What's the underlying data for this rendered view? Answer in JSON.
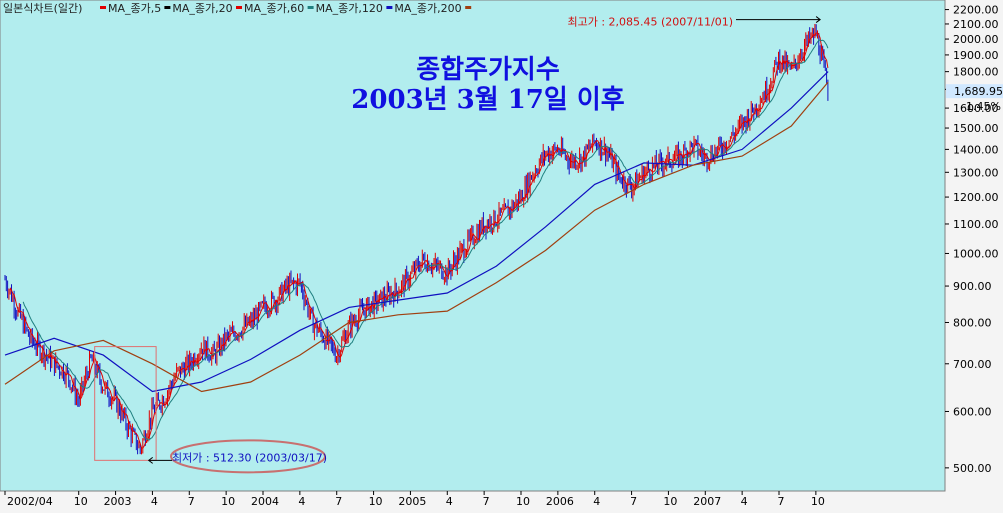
{
  "legend": {
    "chart_name": "일본식차트(일간)",
    "ma_items": [
      {
        "label": "MA_종가,5",
        "color": "#e00000"
      },
      {
        "label": "MA_종가,20",
        "color": "#000000"
      },
      {
        "label": "MA_종가,60",
        "color": "#e00000"
      },
      {
        "label": "MA_종가,120",
        "color": "#208080"
      },
      {
        "label": "MA_종가,200",
        "color": "#1010c0"
      },
      {
        "label": "",
        "color": "#a04010"
      }
    ]
  },
  "colors": {
    "plot_bg": "#b2edee",
    "up_candle": "#e00000",
    "down_candle": "#1010c0",
    "ma5": "#e00000",
    "ma20": "#208080",
    "ma60": "#1010c0",
    "ma120": "#0000a0",
    "ma200": "#a04010",
    "current_label_bg": "#d0e8ff"
  },
  "chart_data": {
    "type": "line",
    "title": "종합주가지수",
    "subtitle": "2003년 3월 17일 이후",
    "y_scale": "log",
    "ylim": [
      470,
      2240
    ],
    "y_ticks": [
      500,
      600,
      700,
      800,
      900,
      1000,
      1100,
      1200,
      1300,
      1400,
      1500,
      1600,
      1700,
      1800,
      1900,
      2000,
      2100,
      2200
    ],
    "y_tick_labels": [
      "500.00",
      "600.00",
      "700.00",
      "800.00",
      "900.00",
      "1000.00",
      "1100.00",
      "1200.00",
      "1300.00",
      "1400.00",
      "1500.00",
      "1600.00",
      "1700.00",
      "1800.00",
      "1900.00",
      "2000.00",
      "2100.00",
      "2200.00"
    ],
    "x_ticks": [
      {
        "label": "2002/04",
        "date": "2002-04"
      },
      {
        "label": "10",
        "date": "2002-10"
      },
      {
        "label": "2003",
        "date": "2003-01"
      },
      {
        "label": "4",
        "date": "2003-04"
      },
      {
        "label": "7",
        "date": "2003-07"
      },
      {
        "label": "10",
        "date": "2003-10"
      },
      {
        "label": "2004",
        "date": "2004-01"
      },
      {
        "label": "4",
        "date": "2004-04"
      },
      {
        "label": "7",
        "date": "2004-07"
      },
      {
        "label": "10",
        "date": "2004-10"
      },
      {
        "label": "2005",
        "date": "2005-01"
      },
      {
        "label": "4",
        "date": "2005-04"
      },
      {
        "label": "7",
        "date": "2005-07"
      },
      {
        "label": "10",
        "date": "2005-10"
      },
      {
        "label": "2006",
        "date": "2006-01"
      },
      {
        "label": "4",
        "date": "2006-04"
      },
      {
        "label": "7",
        "date": "2006-07"
      },
      {
        "label": "10",
        "date": "2006-10"
      },
      {
        "label": "2007",
        "date": "2007-01"
      },
      {
        "label": "4",
        "date": "2007-04"
      },
      {
        "label": "7",
        "date": "2007-07"
      },
      {
        "label": "10",
        "date": "2007-10"
      }
    ],
    "series": [
      {
        "name": "",
        "role": "close",
        "x": [
          "2002-04",
          "2002-05",
          "2002-06",
          "2002-07",
          "2002-08",
          "2002-09",
          "2002-10",
          "2002-11",
          "2002-12",
          "2003-01",
          "2003-02",
          "2003-03",
          "2003-04",
          "2003-05",
          "2003-06",
          "2003-07",
          "2003-08",
          "2003-09",
          "2003-10",
          "2003-11",
          "2003-12",
          "2004-01",
          "2004-02",
          "2004-03",
          "2004-04",
          "2004-05",
          "2004-06",
          "2004-07",
          "2004-08",
          "2004-09",
          "2004-10",
          "2004-11",
          "2004-12",
          "2005-01",
          "2005-02",
          "2005-03",
          "2005-04",
          "2005-05",
          "2005-06",
          "2005-07",
          "2005-08",
          "2005-09",
          "2005-10",
          "2005-11",
          "2005-12",
          "2006-01",
          "2006-02",
          "2006-03",
          "2006-04",
          "2006-05",
          "2006-06",
          "2006-07",
          "2006-08",
          "2006-09",
          "2006-10",
          "2006-11",
          "2006-12",
          "2007-01",
          "2007-02",
          "2007-03",
          "2007-04",
          "2007-05",
          "2007-06",
          "2007-07",
          "2007-08",
          "2007-09",
          "2007-10",
          "2007-11"
        ],
        "values": [
          920,
          830,
          760,
          730,
          700,
          680,
          620,
          710,
          650,
          620,
          570,
          530,
          600,
          630,
          680,
          700,
          740,
          720,
          760,
          780,
          800,
          840,
          860,
          900,
          910,
          800,
          760,
          720,
          790,
          830,
          850,
          870,
          890,
          930,
          980,
          960,
          940,
          1000,
          1050,
          1100,
          1120,
          1150,
          1200,
          1300,
          1380,
          1400,
          1350,
          1360,
          1440,
          1390,
          1280,
          1240,
          1300,
          1330,
          1350,
          1370,
          1420,
          1360,
          1400,
          1450,
          1520,
          1600,
          1700,
          1880,
          1800,
          1950,
          2040,
          1690
        ]
      },
      {
        "name": "",
        "role": "ma120",
        "x": [
          "2002-04",
          "2002-08",
          "2002-12",
          "2003-04",
          "2003-08",
          "2003-12",
          "2004-04",
          "2004-08",
          "2004-12",
          "2005-04",
          "2005-08",
          "2005-12",
          "2006-04",
          "2006-08",
          "2006-12",
          "2007-04",
          "2007-08",
          "2007-11"
        ],
        "values": [
          720,
          760,
          720,
          640,
          660,
          710,
          780,
          840,
          860,
          880,
          960,
          1090,
          1250,
          1340,
          1330,
          1400,
          1600,
          1800
        ]
      },
      {
        "name": "",
        "role": "ma200",
        "x": [
          "2002-04",
          "2002-08",
          "2002-12",
          "2003-04",
          "2003-08",
          "2003-12",
          "2004-04",
          "2004-08",
          "2004-12",
          "2005-04",
          "2005-08",
          "2005-12",
          "2006-04",
          "2006-08",
          "2006-12",
          "2007-04",
          "2007-08",
          "2007-11"
        ],
        "values": [
          655,
          730,
          755,
          700,
          640,
          660,
          720,
          800,
          820,
          830,
          910,
          1010,
          1150,
          1250,
          1330,
          1370,
          1510,
          1740
        ]
      }
    ],
    "annotations": {
      "high": {
        "label": "최고가 : 2,085.45 (2007/11/01)",
        "value": 2085.45,
        "date": "2007-11-01"
      },
      "low": {
        "label": "최저가 : 512.30 (2003/03/17)",
        "value": 512.3,
        "date": "2003-03-17"
      },
      "current": {
        "label": "1,689.95",
        "change": "-1.45%",
        "value": 1689.95
      }
    }
  }
}
